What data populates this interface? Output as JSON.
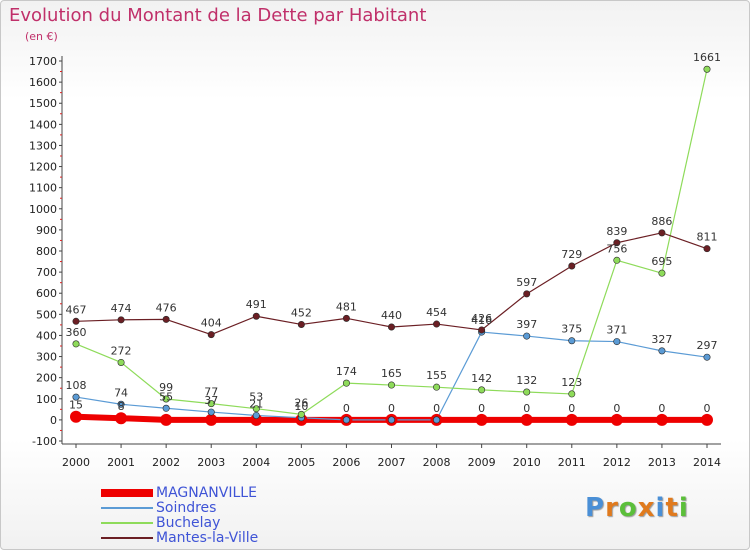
{
  "title": "Evolution du Montant de la Dette par Habitant",
  "unit_label": "(en €)",
  "logo": {
    "text": "Proxiti"
  },
  "chart_data": {
    "type": "line",
    "title": "Evolution du Montant de la Dette par Habitant",
    "ylabel": "(en €)",
    "xlabel": "",
    "x": [
      2000,
      2001,
      2002,
      2003,
      2004,
      2005,
      2006,
      2007,
      2008,
      2009,
      2010,
      2011,
      2012,
      2013,
      2014
    ],
    "ylim": [
      -100,
      1700
    ],
    "yticks": [
      -100,
      0,
      100,
      200,
      300,
      400,
      500,
      600,
      700,
      800,
      900,
      1000,
      1100,
      1200,
      1300,
      1400,
      1500,
      1600,
      1700
    ],
    "grid": false,
    "legend_position": "bottom-left",
    "series": [
      {
        "name": "MAGNANVILLE",
        "color": "#ee0000",
        "values": [
          15,
          8,
          0,
          0,
          0,
          0,
          0,
          0,
          0,
          0,
          0,
          0,
          0,
          0,
          0
        ],
        "labels": [
          "15",
          "8",
          "",
          "",
          "",
          "",
          "",
          "",
          "",
          "0",
          "0",
          "0",
          "0",
          "0",
          "0"
        ]
      },
      {
        "name": "Soindres",
        "color": "#5b9bd5",
        "values": [
          108,
          74,
          55,
          37,
          21,
          10,
          0,
          0,
          0,
          416,
          397,
          375,
          371,
          327,
          297
        ],
        "labels": [
          "108",
          "74",
          "55",
          "37",
          "21",
          "10",
          "0",
          "0",
          "0",
          "416",
          "397",
          "375",
          "371",
          "327",
          "297"
        ]
      },
      {
        "name": "Buchelay",
        "color": "#8edb5a",
        "values": [
          360,
          272,
          99,
          77,
          53,
          26,
          174,
          165,
          155,
          142,
          132,
          123,
          756,
          695,
          1661
        ],
        "labels": [
          "360",
          "272",
          "99",
          "77",
          "53",
          "26",
          "174",
          "165",
          "155",
          "142",
          "132",
          "123",
          "756",
          "695",
          "1661"
        ]
      },
      {
        "name": "Mantes-la-Ville",
        "color": "#6b1f24",
        "values": [
          467,
          474,
          476,
          404,
          491,
          452,
          481,
          440,
          454,
          426,
          597,
          729,
          839,
          886,
          811
        ],
        "labels": [
          "467",
          "474",
          "476",
          "404",
          "491",
          "452",
          "481",
          "440",
          "454",
          "426",
          "597",
          "729",
          "839",
          "886",
          "811"
        ]
      }
    ]
  }
}
